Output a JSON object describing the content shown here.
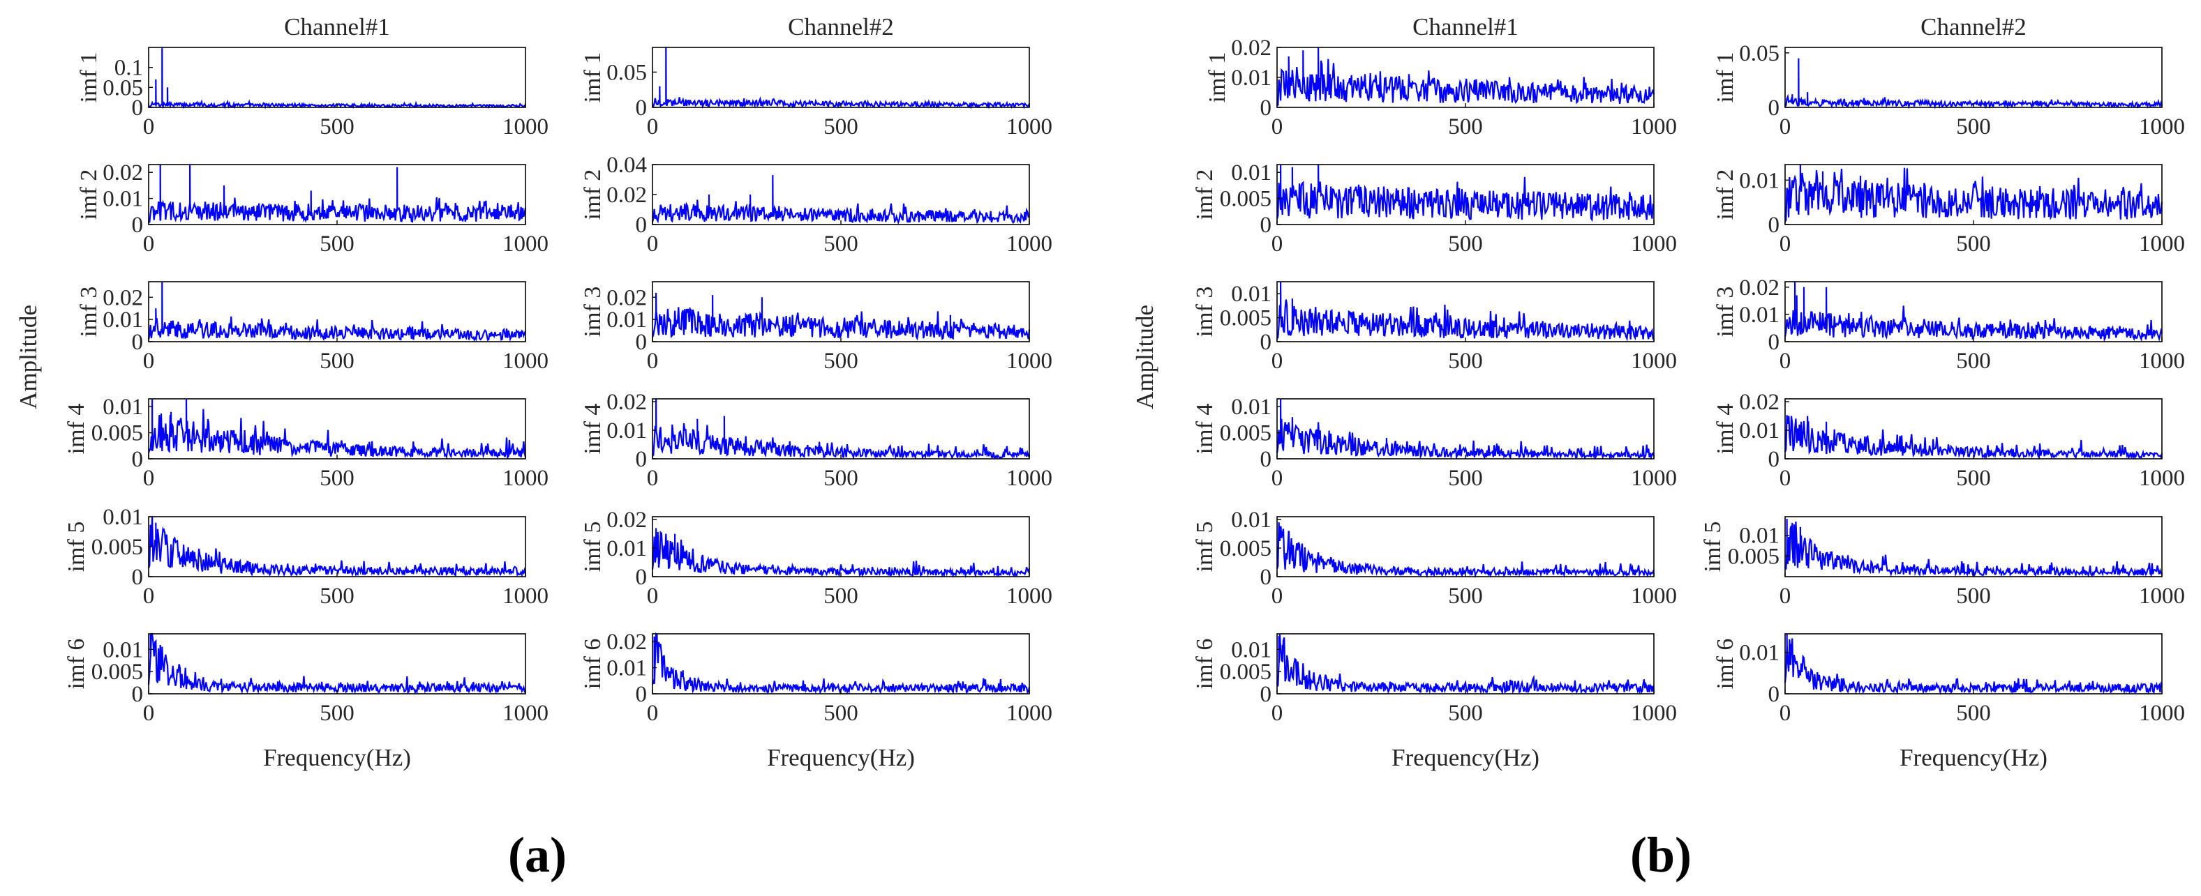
{
  "figure": {
    "panel_labels": [
      "(a)",
      "(b)"
    ],
    "amplitude_label": "Amplitude"
  },
  "style": {
    "line_color": "#0000ff",
    "axis_color": "#000000",
    "text_color": "#262626"
  },
  "chart_data": [
    {
      "type": "line",
      "panel": "(a)",
      "channel_title": "Channel#1",
      "xlabel": "Frequency(Hz)",
      "xlim": [
        0,
        1000
      ],
      "xticks": [
        "0",
        "500",
        "1000"
      ],
      "subplots": [
        {
          "ylabel": "imf 1",
          "ylim": [
            0,
            0.15
          ],
          "yticks": [
            "0",
            "0.05",
            "0.1"
          ],
          "baseline": 0.006,
          "decay": 0.8,
          "noise": 0.004,
          "spikes": [
            [
              35,
              0.15
            ],
            [
              20,
              0.07
            ],
            [
              50,
              0.05
            ]
          ]
        },
        {
          "ylabel": "imf 2",
          "ylim": [
            0,
            0.023
          ],
          "yticks": [
            "0",
            "0.01",
            "0.02"
          ],
          "baseline": 0.0045,
          "decay": 0.3,
          "noise": 0.004,
          "spikes": [
            [
              30,
              0.023
            ],
            [
              110,
              0.023
            ],
            [
              660,
              0.022
            ],
            [
              200,
              0.015
            ],
            [
              430,
              0.013
            ]
          ]
        },
        {
          "ylabel": "imf 3",
          "ylim": [
            0,
            0.027
          ],
          "yticks": [
            "0",
            "0.01",
            "0.02"
          ],
          "baseline": 0.005,
          "decay": 0.9,
          "noise": 0.0045,
          "spikes": [
            [
              35,
              0.027
            ],
            [
              20,
              0.015
            ]
          ]
        },
        {
          "ylabel": "imf 4",
          "ylim": [
            0,
            0.0115
          ],
          "yticks": [
            "0",
            "0.005",
            "0.01"
          ],
          "baseline": 0.005,
          "decay": 3.2,
          "noise": 0.003,
          "spikes": [
            [
              10,
              0.0115
            ],
            [
              100,
              0.0115
            ],
            [
              60,
              0.009
            ]
          ]
        },
        {
          "ylabel": "imf 5",
          "ylim": [
            0,
            0.01
          ],
          "yticks": [
            "0",
            "0.005",
            "0.01"
          ],
          "baseline": 0.006,
          "decay": 9,
          "noise": 0.0015,
          "spikes": [
            [
              20,
              0.009
            ],
            [
              40,
              0.008
            ]
          ]
        },
        {
          "ylabel": "imf 6",
          "ylim": [
            0,
            0.0135
          ],
          "yticks": [
            "0",
            "0.005",
            "0.01"
          ],
          "baseline": 0.009,
          "decay": 18,
          "noise": 0.0018,
          "spikes": [
            [
              5,
              0.0135
            ],
            [
              15,
              0.011
            ]
          ]
        }
      ]
    },
    {
      "type": "line",
      "panel": "(a)",
      "channel_title": "Channel#2",
      "xlabel": "Frequency(Hz)",
      "xlim": [
        0,
        1000
      ],
      "xticks": [
        "0",
        "500",
        "1000"
      ],
      "subplots": [
        {
          "ylabel": "imf 1",
          "ylim": [
            0,
            0.085
          ],
          "yticks": [
            "0",
            "0.05"
          ],
          "baseline": 0.006,
          "decay": 0.8,
          "noise": 0.004,
          "spikes": [
            [
              35,
              0.085
            ],
            [
              20,
              0.03
            ]
          ]
        },
        {
          "ylabel": "imf 2",
          "ylim": [
            0,
            0.04
          ],
          "yticks": [
            "0",
            "0.02",
            "0.04"
          ],
          "baseline": 0.007,
          "decay": 0.6,
          "noise": 0.005,
          "spikes": [
            [
              320,
              0.033
            ],
            [
              150,
              0.02
            ],
            [
              260,
              0.02
            ]
          ]
        },
        {
          "ylabel": "imf 3",
          "ylim": [
            0,
            0.027
          ],
          "yticks": [
            "0",
            "0.01",
            "0.02"
          ],
          "baseline": 0.008,
          "decay": 0.9,
          "noise": 0.006,
          "spikes": [
            [
              10,
              0.022
            ],
            [
              160,
              0.021
            ],
            [
              290,
              0.02
            ],
            [
              790,
              0.012
            ]
          ]
        },
        {
          "ylabel": "imf 4",
          "ylim": [
            0,
            0.021
          ],
          "yticks": [
            "0",
            "0.01",
            "0.02"
          ],
          "baseline": 0.007,
          "decay": 3.5,
          "noise": 0.004,
          "spikes": [
            [
              10,
              0.021
            ],
            [
              190,
              0.015
            ],
            [
              120,
              0.014
            ]
          ]
        },
        {
          "ylabel": "imf 5",
          "ylim": [
            0,
            0.021
          ],
          "yticks": [
            "0",
            "0.01",
            "0.02"
          ],
          "baseline": 0.01,
          "decay": 9,
          "noise": 0.003,
          "spikes": [
            [
              10,
              0.017
            ],
            [
              60,
              0.015
            ]
          ]
        },
        {
          "ylabel": "imf 6",
          "ylim": [
            0,
            0.023
          ],
          "yticks": [
            "0",
            "0.01",
            "0.02"
          ],
          "baseline": 0.014,
          "decay": 20,
          "noise": 0.003,
          "spikes": [
            [
              5,
              0.022
            ],
            [
              15,
              0.018
            ],
            [
              80,
              0.009
            ]
          ]
        }
      ]
    },
    {
      "type": "line",
      "panel": "(b)",
      "channel_title": "Channel#1",
      "xlabel": "Frequency(Hz)",
      "xlim": [
        0,
        1000
      ],
      "xticks": [
        "0",
        "500",
        "1000"
      ],
      "subplots": [
        {
          "ylabel": "imf 1",
          "ylim": [
            0,
            0.02
          ],
          "yticks": [
            "0",
            "0.01",
            "0.02"
          ],
          "baseline": 0.0065,
          "decay": 0.8,
          "noise": 0.005,
          "spikes": [
            [
              70,
              0.019
            ],
            [
              110,
              0.02
            ],
            [
              30,
              0.017
            ]
          ]
        },
        {
          "ylabel": "imf 2",
          "ylim": [
            0,
            0.0115
          ],
          "yticks": [
            "0",
            "0.005",
            "0.01"
          ],
          "baseline": 0.004,
          "decay": 0.4,
          "noise": 0.003,
          "spikes": [
            [
              10,
              0.0115
            ],
            [
              110,
              0.0115
            ],
            [
              40,
              0.011
            ]
          ]
        },
        {
          "ylabel": "imf 3",
          "ylim": [
            0,
            0.0125
          ],
          "yticks": [
            "0",
            "0.005",
            "0.01"
          ],
          "baseline": 0.004,
          "decay": 1.2,
          "noise": 0.003,
          "spikes": [
            [
              10,
              0.0125
            ],
            [
              40,
              0.009
            ]
          ]
        },
        {
          "ylabel": "imf 4",
          "ylim": [
            0,
            0.0115
          ],
          "yticks": [
            "0",
            "0.005",
            "0.01"
          ],
          "baseline": 0.004,
          "decay": 4,
          "noise": 0.002,
          "spikes": [
            [
              10,
              0.0115
            ],
            [
              40,
              0.008
            ],
            [
              290,
              0.004
            ]
          ]
        },
        {
          "ylabel": "imf 5",
          "ylim": [
            0,
            0.0105
          ],
          "yticks": [
            "0",
            "0.005",
            "0.01"
          ],
          "baseline": 0.005,
          "decay": 10,
          "noise": 0.0015,
          "spikes": [
            [
              10,
              0.008
            ],
            [
              30,
              0.007
            ]
          ]
        },
        {
          "ylabel": "imf 6",
          "ylim": [
            0,
            0.0135
          ],
          "yticks": [
            "0",
            "0.005",
            "0.01"
          ],
          "baseline": 0.009,
          "decay": 18,
          "noise": 0.0018,
          "spikes": [
            [
              5,
              0.013
            ],
            [
              15,
              0.011
            ]
          ]
        }
      ]
    },
    {
      "type": "line",
      "panel": "(b)",
      "channel_title": "Channel#2",
      "xlabel": "Frequency(Hz)",
      "xlim": [
        0,
        1000
      ],
      "xticks": [
        "0",
        "500",
        "1000"
      ],
      "subplots": [
        {
          "ylabel": "imf 1",
          "ylim": [
            0,
            0.055
          ],
          "yticks": [
            "0",
            "0.05"
          ],
          "baseline": 0.004,
          "decay": 0.8,
          "noise": 0.0035,
          "spikes": [
            [
              35,
              0.045
            ],
            [
              60,
              0.014
            ],
            [
              20,
              0.012
            ]
          ]
        },
        {
          "ylabel": "imf 2",
          "ylim": [
            0,
            0.0135
          ],
          "yticks": [
            "0",
            "0.01"
          ],
          "baseline": 0.0055,
          "decay": 0.5,
          "noise": 0.004,
          "spikes": [
            [
              40,
              0.0135
            ],
            [
              100,
              0.012
            ],
            [
              200,
              0.011
            ]
          ]
        },
        {
          "ylabel": "imf 3",
          "ylim": [
            0,
            0.022
          ],
          "yticks": [
            "0",
            "0.01",
            "0.02"
          ],
          "baseline": 0.006,
          "decay": 1.2,
          "noise": 0.005,
          "spikes": [
            [
              25,
              0.022
            ],
            [
              50,
              0.02
            ],
            [
              110,
              0.02
            ],
            [
              30,
              0.017
            ]
          ]
        },
        {
          "ylabel": "imf 4",
          "ylim": [
            0,
            0.021
          ],
          "yticks": [
            "0",
            "0.01",
            "0.02"
          ],
          "baseline": 0.008,
          "decay": 4,
          "noise": 0.004,
          "spikes": [
            [
              10,
              0.015
            ],
            [
              60,
              0.015
            ],
            [
              110,
              0.013
            ]
          ]
        },
        {
          "ylabel": "imf 5",
          "ylim": [
            0,
            0.0145
          ],
          "yticks": [
            "0.005",
            "0.01"
          ],
          "baseline": 0.008,
          "decay": 10,
          "noise": 0.0025,
          "spikes": [
            [
              5,
              0.014
            ],
            [
              20,
              0.013
            ],
            [
              40,
              0.012
            ]
          ]
        },
        {
          "ylabel": "imf 6",
          "ylim": [
            0,
            0.0145
          ],
          "yticks": [
            "0",
            "0.01"
          ],
          "baseline": 0.009,
          "decay": 18,
          "noise": 0.002,
          "spikes": [
            [
              5,
              0.0145
            ],
            [
              15,
              0.012
            ],
            [
              60,
              0.005
            ]
          ]
        }
      ]
    }
  ]
}
